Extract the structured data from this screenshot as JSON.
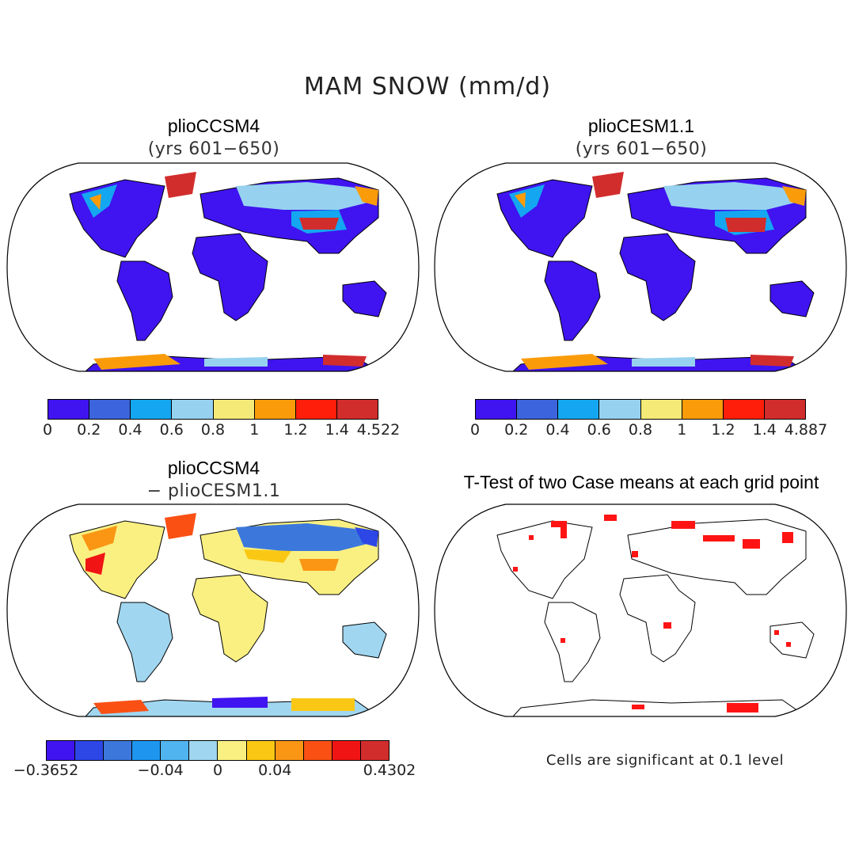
{
  "title": "MAM SNOW (mm/d)",
  "panels": {
    "top_left": {
      "title": "plioCCSM4",
      "subtitle": "(yrs 601−650)"
    },
    "top_right": {
      "title": "plioCESM1.1",
      "subtitle": "(yrs 601−650)"
    },
    "bottom_left": {
      "title": "plioCCSM4",
      "subtitle": "− plioCESM1.1"
    },
    "bottom_right": {
      "title": "T-Test of two Case means at each grid point",
      "note": "Cells are significant at 0.1 level"
    }
  },
  "colorbars": {
    "top_left": {
      "colors": [
        "#3f14f0",
        "#3c64dc",
        "#14a6f0",
        "#96d2f0",
        "#f5ea78",
        "#fa9c0a",
        "#ff1e0a",
        "#d22d2d"
      ],
      "labels": [
        "0",
        "0.2",
        "0.4",
        "0.6",
        "0.8",
        "1",
        "1.2",
        "1.4",
        "4.522"
      ]
    },
    "top_right": {
      "colors": [
        "#3f14f0",
        "#3c64dc",
        "#14a6f0",
        "#96d2f0",
        "#f5ea78",
        "#fa9c0a",
        "#ff1e0a",
        "#d22d2d"
      ],
      "labels": [
        "0",
        "0.2",
        "0.4",
        "0.6",
        "0.8",
        "1",
        "1.2",
        "1.4",
        "4.887"
      ]
    },
    "bottom_left": {
      "colors": [
        "#3f14f0",
        "#2d46e6",
        "#3c78dc",
        "#1e96f0",
        "#50b4f0",
        "#a0d6f0",
        "#faf082",
        "#fac814",
        "#fa9614",
        "#fa5014",
        "#f01414",
        "#d22d2d"
      ],
      "labels": [
        "−0.3652",
        "−0.04",
        "0",
        "0.04",
        "0.4302"
      ]
    }
  }
}
